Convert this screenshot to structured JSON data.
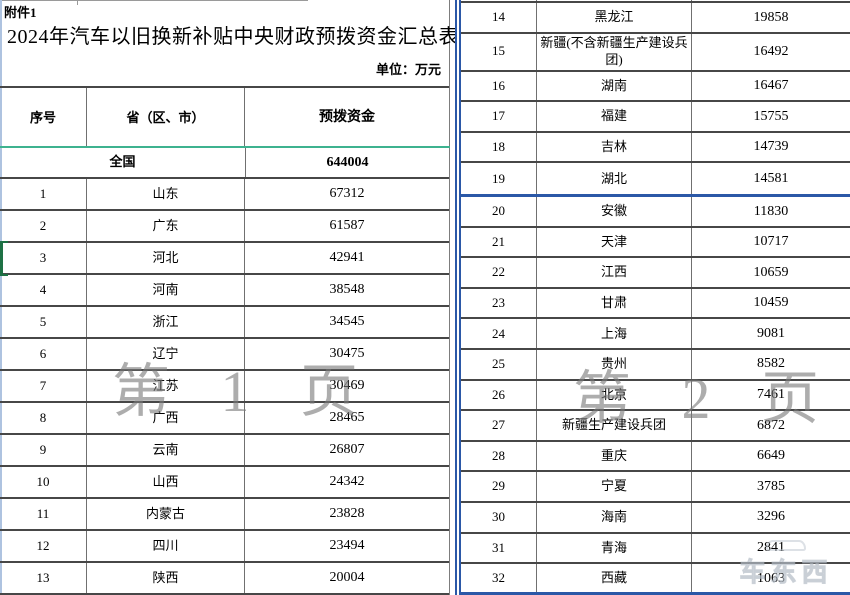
{
  "colors": {
    "border_dark": "#474747",
    "border_light": "#707070",
    "blue_page_line": "#2b58a7",
    "teal_freeze_line": "#3db28f",
    "green_selection": "#1e7145",
    "watermark_gray": "#7a7a7a"
  },
  "page1": {
    "attachment_label": "附件1",
    "title": "2024年汽车以旧换新补贴中央财政预拨资金汇总表",
    "unit_label": "单位：万元",
    "columns": {
      "no": "序号",
      "province": "省（区、市）",
      "amount": "预拨资金"
    },
    "total": {
      "label": "全国",
      "amount": "644004"
    },
    "selected_row_no": "3",
    "watermark": "第 1 页",
    "rows": [
      {
        "no": "1",
        "province": "山东",
        "amount": "67312"
      },
      {
        "no": "2",
        "province": "广东",
        "amount": "61587"
      },
      {
        "no": "3",
        "province": "河北",
        "amount": "42941"
      },
      {
        "no": "4",
        "province": "河南",
        "amount": "38548"
      },
      {
        "no": "5",
        "province": "浙江",
        "amount": "34545"
      },
      {
        "no": "6",
        "province": "辽宁",
        "amount": "30475"
      },
      {
        "no": "7",
        "province": "江苏",
        "amount": "30469"
      },
      {
        "no": "8",
        "province": "广西",
        "amount": "28465"
      },
      {
        "no": "9",
        "province": "云南",
        "amount": "26807"
      },
      {
        "no": "10",
        "province": "山西",
        "amount": "24342"
      },
      {
        "no": "11",
        "province": "内蒙古",
        "amount": "23828"
      },
      {
        "no": "12",
        "province": "四川",
        "amount": "23494"
      },
      {
        "no": "13",
        "province": "陕西",
        "amount": "20004"
      }
    ]
  },
  "page2": {
    "watermark": "第 2 页",
    "logo_watermark": "车东西",
    "rows": [
      {
        "no": "14",
        "province": "黑龙江",
        "amount": "19858"
      },
      {
        "no": "15",
        "province": "新疆(不含新疆生产建设兵团)",
        "amount": "16492",
        "tall": true
      },
      {
        "no": "16",
        "province": "湖南",
        "amount": "16467"
      },
      {
        "no": "17",
        "province": "福建",
        "amount": "15755"
      },
      {
        "no": "18",
        "province": "吉林",
        "amount": "14739"
      },
      {
        "no": "19",
        "province": "湖北",
        "amount": "14581",
        "break_after": true
      },
      {
        "no": "20",
        "province": "安徽",
        "amount": "11830"
      },
      {
        "no": "21",
        "province": "天津",
        "amount": "10717"
      },
      {
        "no": "22",
        "province": "江西",
        "amount": "10659"
      },
      {
        "no": "23",
        "province": "甘肃",
        "amount": "10459"
      },
      {
        "no": "24",
        "province": "上海",
        "amount": "9081"
      },
      {
        "no": "25",
        "province": "贵州",
        "amount": "8582"
      },
      {
        "no": "26",
        "province": "北京",
        "amount": "7461"
      },
      {
        "no": "27",
        "province": "新疆生产建设兵团",
        "amount": "6872"
      },
      {
        "no": "28",
        "province": "重庆",
        "amount": "6649"
      },
      {
        "no": "29",
        "province": "宁夏",
        "amount": "3785"
      },
      {
        "no": "30",
        "province": "海南",
        "amount": "3296"
      },
      {
        "no": "31",
        "province": "青海",
        "amount": "2841"
      },
      {
        "no": "32",
        "province": "西藏",
        "amount": "1063"
      }
    ]
  }
}
